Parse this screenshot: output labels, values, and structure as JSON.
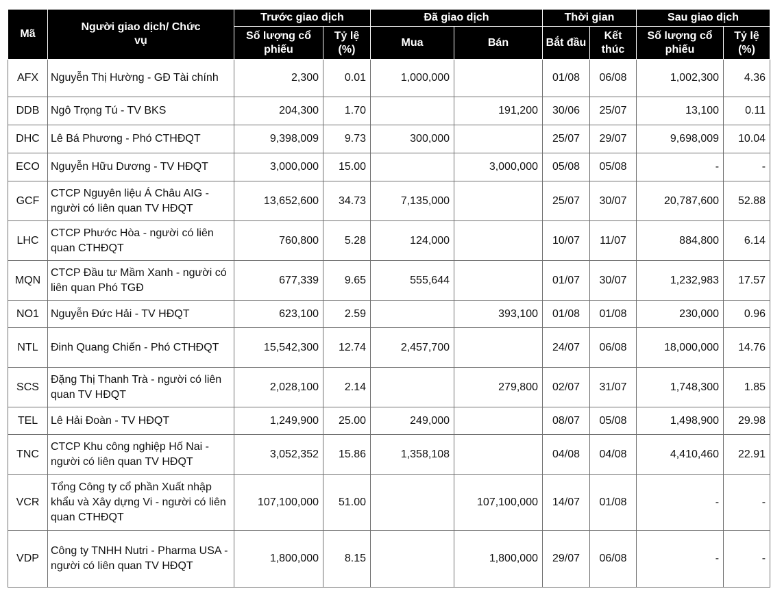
{
  "headers": {
    "ma": "Mã",
    "nguoi": "Người giao dịch/ Chức vụ",
    "truoc": "Trước giao dịch",
    "da": "Đã giao dịch",
    "thoigian": "Thời gian",
    "sau": "Sau giao dịch",
    "so_luong": "Số lượng cổ phiếu",
    "ty_le": "Tỷ lệ (%)",
    "mua": "Mua",
    "ban": "Bán",
    "bat_dau": "Bắt đầu",
    "ket_thuc": "Kết thúc"
  },
  "rows": [
    {
      "ma": "AFX",
      "nguoi": "Nguyễn Thị Hường - GĐ Tài chính",
      "sl_truoc": "2,300",
      "tl_truoc": "0.01",
      "mua": "1,000,000",
      "ban": "",
      "bat_dau": "01/08",
      "ket_thuc": "06/08",
      "sl_sau": "1,002,300",
      "tl_sau": "4.36"
    },
    {
      "ma": "DDB",
      "nguoi": "Ngô Trọng Tú - TV BKS",
      "sl_truoc": "204,300",
      "tl_truoc": "1.70",
      "mua": "",
      "ban": "191,200",
      "bat_dau": "30/06",
      "ket_thuc": "25/07",
      "sl_sau": "13,100",
      "tl_sau": "0.11"
    },
    {
      "ma": "DHC",
      "nguoi": "Lê Bá Phương - Phó CTHĐQT",
      "sl_truoc": "9,398,009",
      "tl_truoc": "9.73",
      "mua": "300,000",
      "ban": "",
      "bat_dau": "25/07",
      "ket_thuc": "29/07",
      "sl_sau": "9,698,009",
      "tl_sau": "10.04"
    },
    {
      "ma": "ECO",
      "nguoi": "Nguyễn Hữu Dương - TV HĐQT",
      "sl_truoc": "3,000,000",
      "tl_truoc": "15.00",
      "mua": "",
      "ban": "3,000,000",
      "bat_dau": "05/08",
      "ket_thuc": "05/08",
      "sl_sau": "-",
      "tl_sau": "-"
    },
    {
      "ma": "GCF",
      "nguoi": "CTCP Nguyên liệu Á Châu AIG - người có liên quan TV HĐQT",
      "sl_truoc": "13,652,600",
      "tl_truoc": "34.73",
      "mua": "7,135,000",
      "ban": "",
      "bat_dau": "25/07",
      "ket_thuc": "30/07",
      "sl_sau": "20,787,600",
      "tl_sau": "52.88"
    },
    {
      "ma": "LHC",
      "nguoi": "CTCP Phước Hòa - người có liên quan CTHĐQT",
      "sl_truoc": "760,800",
      "tl_truoc": "5.28",
      "mua": "124,000",
      "ban": "",
      "bat_dau": "10/07",
      "ket_thuc": "11/07",
      "sl_sau": "884,800",
      "tl_sau": "6.14"
    },
    {
      "ma": "MQN",
      "nguoi": "CTCP Đầu tư Mầm Xanh - người có liên quan Phó TGĐ",
      "sl_truoc": "677,339",
      "tl_truoc": "9.65",
      "mua": "555,644",
      "ban": "",
      "bat_dau": "01/07",
      "ket_thuc": "30/07",
      "sl_sau": "1,232,983",
      "tl_sau": "17.57"
    },
    {
      "ma": "NO1",
      "nguoi": "Nguyễn Đức Hải - TV HĐQT",
      "sl_truoc": "623,100",
      "tl_truoc": "2.59",
      "mua": "",
      "ban": "393,100",
      "bat_dau": "01/08",
      "ket_thuc": "01/08",
      "sl_sau": "230,000",
      "tl_sau": "0.96"
    },
    {
      "ma": "NTL",
      "nguoi": "Đinh Quang Chiến - Phó CTHĐQT",
      "sl_truoc": "15,542,300",
      "tl_truoc": "12.74",
      "mua": "2,457,700",
      "ban": "",
      "bat_dau": "24/07",
      "ket_thuc": "06/08",
      "sl_sau": "18,000,000",
      "tl_sau": "14.76"
    },
    {
      "ma": "SCS",
      "nguoi": "Đặng Thị Thanh Trà - người có liên quan TV HĐQT",
      "sl_truoc": "2,028,100",
      "tl_truoc": "2.14",
      "mua": "",
      "ban": "279,800",
      "bat_dau": "02/07",
      "ket_thuc": "31/07",
      "sl_sau": "1,748,300",
      "tl_sau": "1.85"
    },
    {
      "ma": "TEL",
      "nguoi": "Lê Hải Đoàn - TV HĐQT",
      "sl_truoc": "1,249,900",
      "tl_truoc": "25.00",
      "mua": "249,000",
      "ban": "",
      "bat_dau": "08/07",
      "ket_thuc": "05/08",
      "sl_sau": "1,498,900",
      "tl_sau": "29.98"
    },
    {
      "ma": "TNC",
      "nguoi": "CTCP Khu công nghiệp Hố Nai - người có liên quan TV HĐQT",
      "sl_truoc": "3,052,352",
      "tl_truoc": "15.86",
      "mua": "1,358,108",
      "ban": "",
      "bat_dau": "04/08",
      "ket_thuc": "04/08",
      "sl_sau": "4,410,460",
      "tl_sau": "22.91"
    },
    {
      "ma": "VCR",
      "nguoi": "Tổng Công ty cổ phần Xuất nhập khẩu và Xây dựng Vi - người có liên quan CTHĐQT",
      "sl_truoc": "107,100,000",
      "tl_truoc": "51.00",
      "mua": "",
      "ban": "107,100,000",
      "bat_dau": "14/07",
      "ket_thuc": "01/08",
      "sl_sau": "-",
      "tl_sau": "-"
    },
    {
      "ma": "VDP",
      "nguoi": "Công ty TNHH Nutri - Pharma USA - người có liên quan TV HĐQT",
      "sl_truoc": "1,800,000",
      "tl_truoc": "8.15",
      "mua": "",
      "ban": "1,800,000",
      "bat_dau": "29/07",
      "ket_thuc": "06/08",
      "sl_sau": "-",
      "tl_sau": "-"
    }
  ]
}
